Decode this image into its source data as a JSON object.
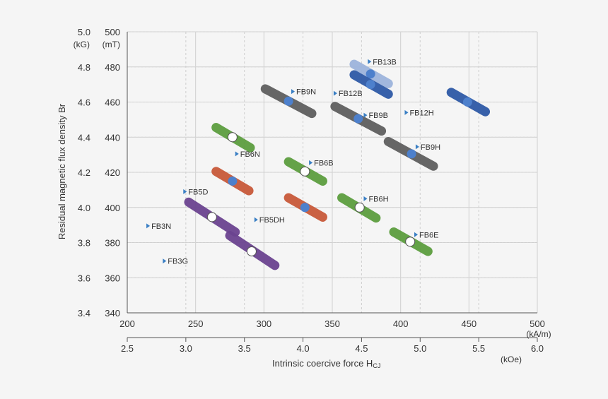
{
  "chart_data": {
    "type": "scatter",
    "title": "",
    "xlabel": "Intrinsic coercive force H",
    "xlabel_subscript": "CJ",
    "ylabel": "Residual magnetic flux density Br",
    "x_primary": {
      "unit": "(kA/m)",
      "range": [
        200,
        500
      ],
      "ticks": [
        "200",
        "250",
        "300",
        "350",
        "400",
        "450",
        "500"
      ]
    },
    "x_secondary": {
      "unit": "(kOe)",
      "range": [
        2.5,
        6.0
      ],
      "ticks": [
        "2.5",
        "3.0",
        "3.5",
        "4.0",
        "4.5",
        "5.0",
        "5.5",
        "6.0"
      ]
    },
    "y_left": {
      "unit": "(kG)",
      "range": [
        3.4,
        5.0
      ],
      "ticks": [
        "3.4",
        "3.6",
        "3.8",
        "4.0",
        "4.2",
        "4.4",
        "4.6",
        "4.8",
        "5.0"
      ]
    },
    "y_right": {
      "unit": "(mT)",
      "range": [
        340,
        500
      ],
      "ticks": [
        "340",
        "360",
        "380",
        "400",
        "420",
        "440",
        "460",
        "480",
        "500"
      ]
    },
    "grid": true,
    "colors": {
      "green": "#5d9e3f",
      "orange": "#c85a3a",
      "purple": "#6b4490",
      "gray": "#5f5f5f",
      "blue": "#2e5aa6",
      "lightblue": "#9db4dc",
      "dot_blue": "#4d80cc",
      "marker": "#3a7fc4"
    },
    "grades": [
      {
        "name": "FB3N",
        "color": "purple",
        "center_hcj": 262,
        "center_br": 394.5,
        "hcj_range": [
          245,
          279
        ],
        "br_range": [
          403,
          386
        ],
        "center_marker": "open",
        "label_hcj": 214,
        "label_br": 389.5
      },
      {
        "name": "FB3G",
        "color": "purple",
        "center_hcj": 291,
        "center_br": 375,
        "hcj_range": [
          275,
          308
        ],
        "br_range": [
          384,
          367
        ],
        "center_marker": "open",
        "label_hcj": 226,
        "label_br": 369.5
      },
      {
        "name": "FB5D",
        "color": "orange",
        "center_hcj": 277,
        "center_br": 415,
        "hcj_range": [
          265,
          289
        ],
        "br_range": [
          420.5,
          409.5
        ],
        "center_marker": "filled",
        "label_hcj": 241,
        "label_br": 409
      },
      {
        "name": "FB5DH",
        "color": "orange",
        "center_hcj": 330,
        "center_br": 400,
        "hcj_range": [
          318,
          343
        ],
        "br_range": [
          405.5,
          394.5
        ],
        "center_marker": "filled",
        "label_hcj": 293,
        "label_br": 393
      },
      {
        "name": "FB6N",
        "color": "green",
        "center_hcj": 277,
        "center_br": 440,
        "hcj_range": [
          265,
          290
        ],
        "br_range": [
          445.5,
          434
        ],
        "center_marker": "open",
        "label_hcj": 279,
        "label_br": 430.5
      },
      {
        "name": "FB6B",
        "color": "green",
        "center_hcj": 330,
        "center_br": 420.5,
        "hcj_range": [
          318,
          343
        ],
        "br_range": [
          426,
          415
        ],
        "center_marker": "open",
        "label_hcj": 333,
        "label_br": 425.5
      },
      {
        "name": "FB6H",
        "color": "green",
        "center_hcj": 370,
        "center_br": 400,
        "hcj_range": [
          357,
          382
        ],
        "br_range": [
          405.5,
          394
        ],
        "center_marker": "open",
        "label_hcj": 373,
        "label_br": 405
      },
      {
        "name": "FB6E",
        "color": "green",
        "center_hcj": 407,
        "center_br": 380.5,
        "hcj_range": [
          395,
          420
        ],
        "br_range": [
          386,
          375
        ],
        "center_marker": "open",
        "label_hcj": 410,
        "label_br": 384.5
      },
      {
        "name": "FB9N",
        "color": "gray",
        "center_hcj": 318,
        "center_br": 460.5,
        "hcj_range": [
          301,
          335
        ],
        "br_range": [
          467.5,
          453.5
        ],
        "center_marker": "filled",
        "label_hcj": 320,
        "label_br": 466
      },
      {
        "name": "FB9B",
        "color": "gray",
        "center_hcj": 369,
        "center_br": 450.5,
        "hcj_range": [
          352,
          386
        ],
        "br_range": [
          457.5,
          443.5
        ],
        "center_marker": "filled",
        "label_hcj": 373,
        "label_br": 452.5
      },
      {
        "name": "FB9H",
        "color": "gray",
        "center_hcj": 408,
        "center_br": 430.5,
        "hcj_range": [
          391,
          424
        ],
        "br_range": [
          437.5,
          423.5
        ],
        "center_marker": "filled",
        "label_hcj": 411,
        "label_br": 434.5
      },
      {
        "name": "FB12B",
        "color": "blue",
        "center_hcj": 378,
        "center_br": 470,
        "hcj_range": [
          366,
          391
        ],
        "br_range": [
          475.5,
          464.5
        ],
        "center_marker": "filled",
        "label_hcj": 351,
        "label_br": 465
      },
      {
        "name": "FB12H",
        "color": "blue",
        "center_hcj": 449,
        "center_br": 460,
        "hcj_range": [
          437,
          462
        ],
        "br_range": [
          465.5,
          454.5
        ],
        "center_marker": "filled",
        "label_hcj": 403,
        "label_br": 454
      },
      {
        "name": "FB13B",
        "color": "lightblue",
        "center_hcj": 378,
        "center_br": 476,
        "hcj_range": [
          366,
          391
        ],
        "br_range": [
          481.5,
          470.5
        ],
        "center_marker": "filled",
        "label_hcj": 376,
        "label_br": 483
      }
    ],
    "draw_order": [
      "FB3N",
      "FB3G",
      "FB5D",
      "FB5DH",
      "FB6N",
      "FB6B",
      "FB6H",
      "FB6E",
      "FB9N",
      "FB9B",
      "FB9H",
      "FB13B",
      "FB12B",
      "FB12H"
    ]
  }
}
